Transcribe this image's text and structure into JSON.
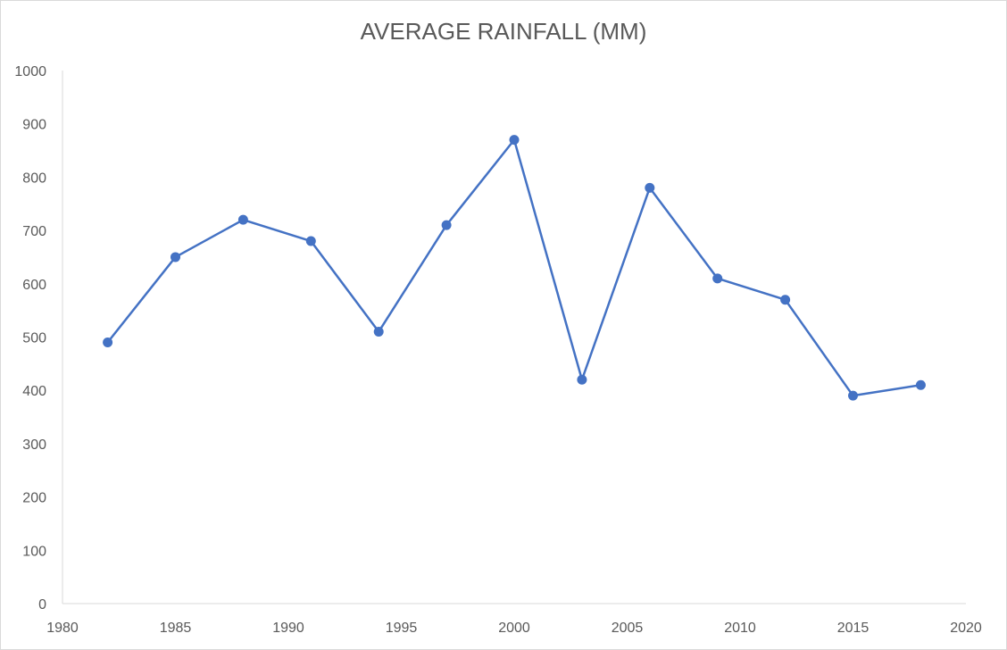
{
  "chart_data": {
    "type": "scatter",
    "title": "AVERAGE RAINFALL (MM)",
    "xlabel": "",
    "ylabel": "",
    "xlim": [
      1980,
      2020
    ],
    "ylim": [
      0,
      1000
    ],
    "xticks": [
      1980,
      1985,
      1990,
      1995,
      2000,
      2005,
      2010,
      2015,
      2020
    ],
    "yticks": [
      0,
      100,
      200,
      300,
      400,
      500,
      600,
      700,
      800,
      900,
      1000
    ],
    "grid": false,
    "legend": "none",
    "series": [
      {
        "x": [
          1982,
          1985,
          1988,
          1991,
          1994,
          1997,
          2000,
          2003,
          2006,
          2009,
          2012,
          2015,
          2018
        ],
        "values": [
          490,
          650,
          720,
          680,
          510,
          710,
          870,
          420,
          780,
          610,
          570,
          390,
          410
        ],
        "color": "#4472c4",
        "mode": "lines+markers"
      }
    ]
  }
}
